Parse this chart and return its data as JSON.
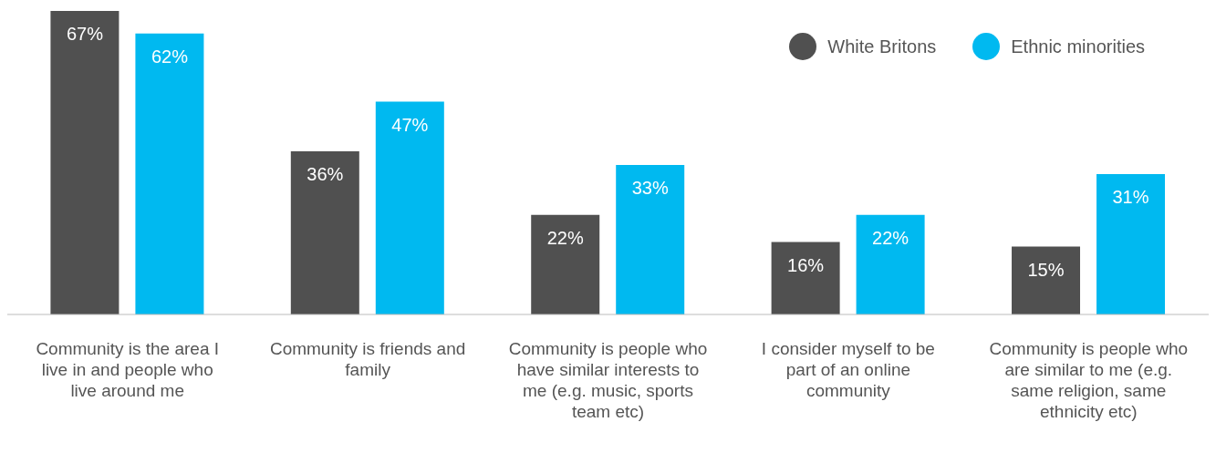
{
  "chart_data": {
    "type": "bar",
    "categories": [
      "Community is the area I live in and people who live around me",
      "Community is friends and family",
      "Community is people who have similar interests to me (e.g. music, sports team etc)",
      "I consider myself to be part of an online community",
      "Community is people who are similar to me (e.g. same religion, same ethnicity etc)"
    ],
    "series": [
      {
        "name": "White Britons",
        "color": "#505050",
        "values": [
          67,
          36,
          22,
          16,
          15
        ],
        "value_labels": [
          "67%",
          "36%",
          "22%",
          "16%",
          "15%"
        ]
      },
      {
        "name": "Ethnic minorities",
        "color": "#00b9f0",
        "values": [
          62,
          47,
          33,
          22,
          31
        ],
        "value_labels": [
          "62%",
          "47%",
          "33%",
          "22%",
          "31%"
        ]
      }
    ],
    "legend": "top right"
  }
}
